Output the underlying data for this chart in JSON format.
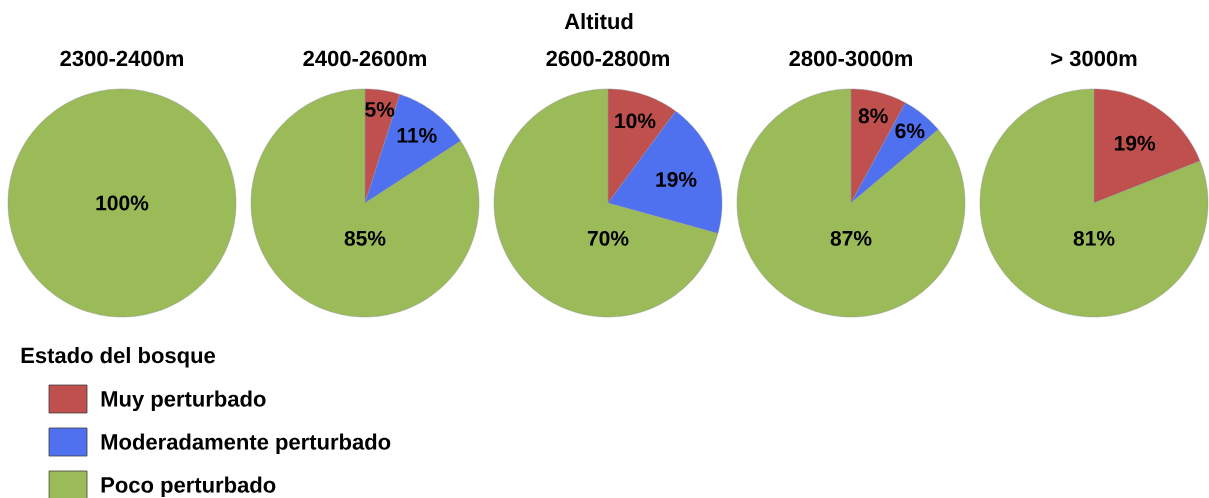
{
  "chart_data": [
    {
      "type": "other",
      "title": "Altitud"
    },
    {
      "type": "pie",
      "title": "2300-2400m",
      "categories": [
        "Muy perturbado",
        "Moderadamente perturbado",
        "Poco perturbado"
      ],
      "values": [
        0,
        0,
        100
      ],
      "colors": [
        "#c0504d",
        "#4f71ef",
        "#9bbb59"
      ],
      "value_labels": [
        null,
        null,
        "100%"
      ],
      "legend": "bottom",
      "legend_title": "Estado del bosque"
    },
    {
      "type": "pie",
      "title": "2400-2600m",
      "values": [
        5,
        11,
        85
      ],
      "colors": [
        "#c0504d",
        "#4f71ef",
        "#9bbb59"
      ],
      "value_labels": [
        "5%",
        "11%",
        "85%"
      ]
    },
    {
      "type": "pie",
      "title": "2600-2800m",
      "values": [
        10,
        19,
        70
      ],
      "colors": [
        "#c0504d",
        "#4f71ef",
        "#9bbb59"
      ],
      "value_labels": [
        "10%",
        "19%",
        "70%"
      ]
    },
    {
      "type": "pie",
      "title": "2800-3000m",
      "values": [
        8,
        6,
        87
      ],
      "colors": [
        "#c0504d",
        "#4f71ef",
        "#9bbb59"
      ],
      "value_labels": [
        "8%",
        "6%",
        "87%"
      ]
    },
    {
      "type": "pie",
      "title": "> 3000m",
      "values": [
        19,
        0,
        81
      ],
      "colors": [
        "#c0504d",
        "#4f71ef",
        "#9bbb59"
      ],
      "value_labels": [
        "19%",
        null,
        "81%"
      ]
    }
  ]
}
